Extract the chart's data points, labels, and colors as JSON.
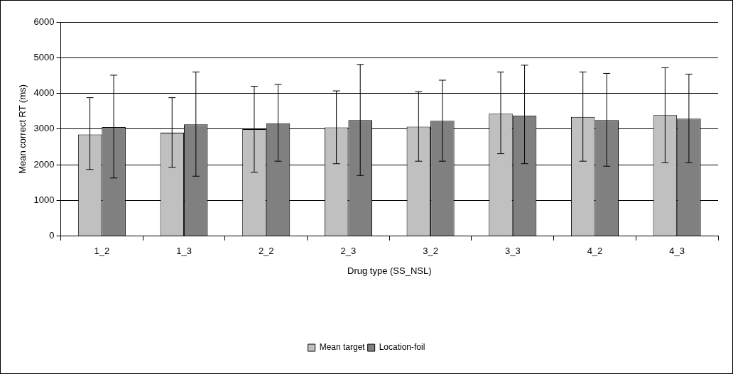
{
  "chart_data": {
    "type": "bar",
    "xlabel": "Drug type (SS_NSL)",
    "ylabel": "Mean correct RT (ms)",
    "categories": [
      "1_2",
      "1_3",
      "2_2",
      "2_3",
      "3_2",
      "3_3",
      "4_2",
      "4_3"
    ],
    "series": [
      {
        "name": "Mean target",
        "color": "#c0c0c0",
        "values": [
          2850,
          2900,
          3000,
          3050,
          3070,
          3430,
          3340,
          3390
        ],
        "errors": [
          [
            1870,
            3880
          ],
          [
            1930,
            3880
          ],
          [
            1790,
            4200
          ],
          [
            2030,
            4070
          ],
          [
            2100,
            4050
          ],
          [
            2310,
            4600
          ],
          [
            2100,
            4600
          ],
          [
            2060,
            4720
          ]
        ]
      },
      {
        "name": "Location-foil",
        "color": "#808080",
        "values": [
          3060,
          3130,
          3160,
          3250,
          3230,
          3380,
          3250,
          3290
        ],
        "errors": [
          [
            1630,
            4510
          ],
          [
            1680,
            4600
          ],
          [
            2100,
            4250
          ],
          [
            1700,
            4810
          ],
          [
            2100,
            4370
          ],
          [
            2030,
            4790
          ],
          [
            1960,
            4560
          ],
          [
            2060,
            4540
          ]
        ]
      }
    ],
    "ylim": [
      0,
      6000
    ],
    "yticks": [
      0,
      1000,
      2000,
      3000,
      4000,
      5000,
      6000
    ],
    "grid": "y",
    "legend": "bottom"
  }
}
